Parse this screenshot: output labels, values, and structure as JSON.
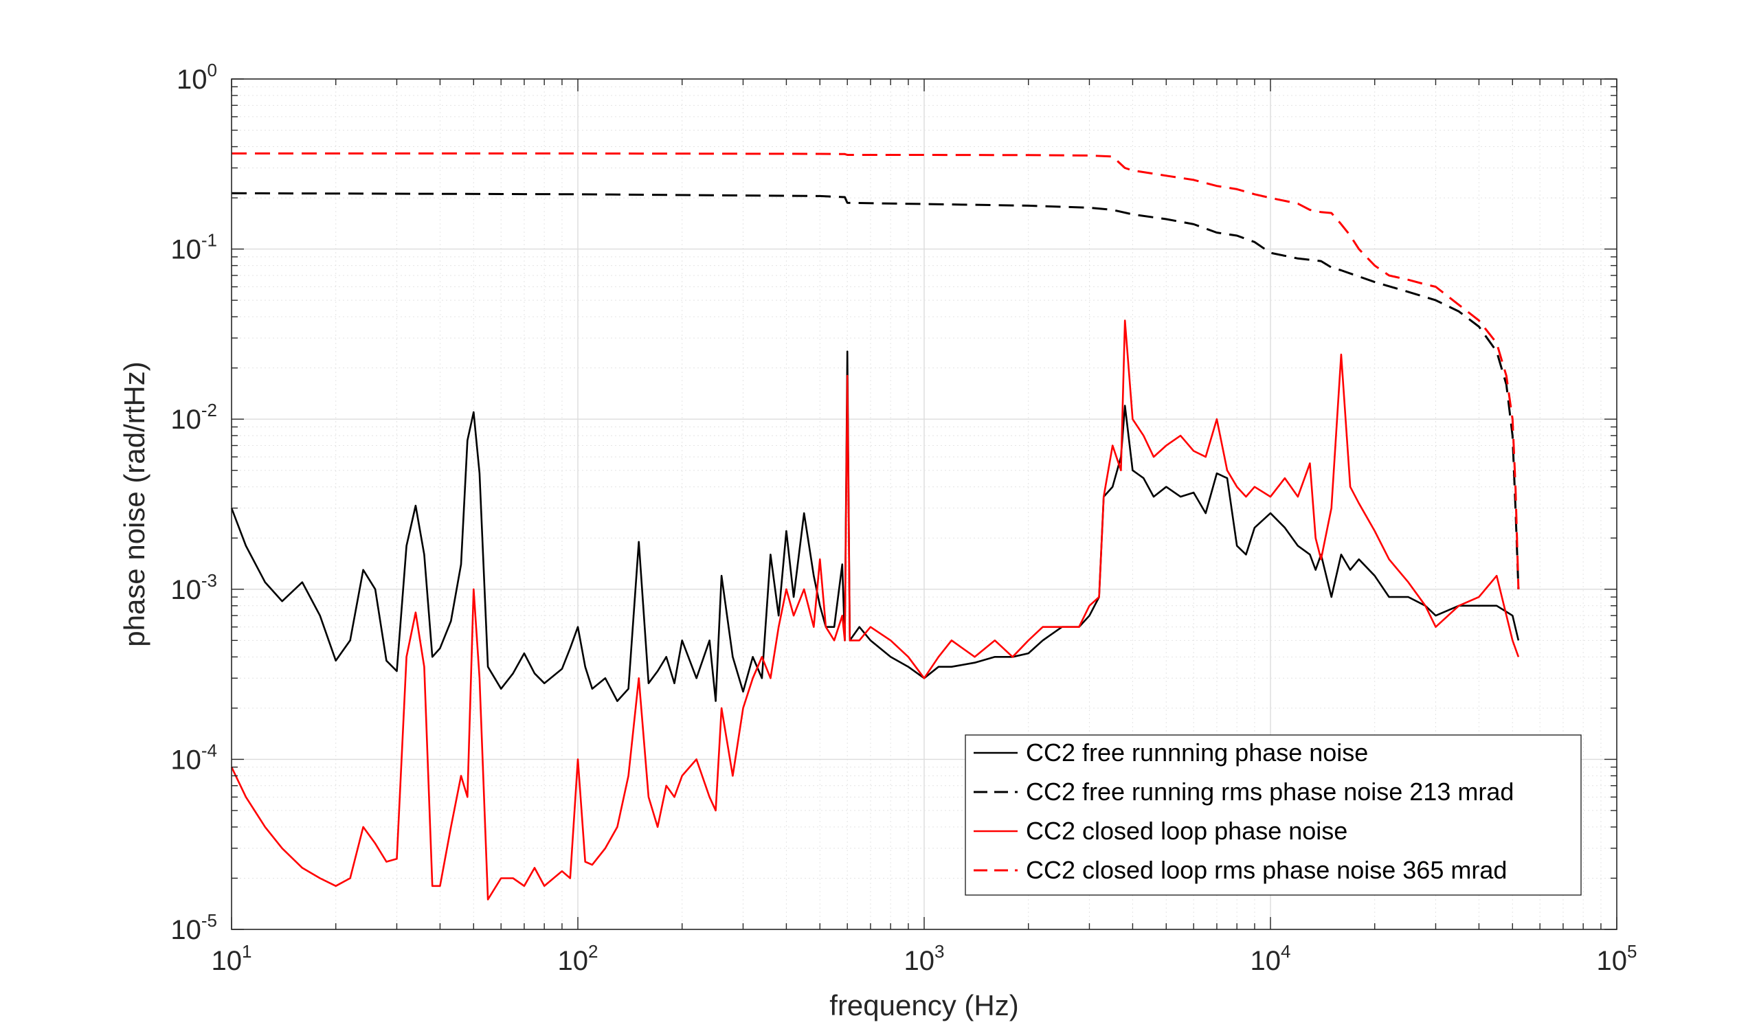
{
  "chart_data": {
    "type": "line",
    "title": "",
    "xlabel": "frequency (Hz)",
    "ylabel": "phase noise (rad/rtHz)",
    "xscale": "log",
    "yscale": "log",
    "xlim": [
      10,
      100000
    ],
    "ylim": [
      1e-05,
      1
    ],
    "grid": true,
    "legend_position": "bottom-right",
    "x_ticks": [
      {
        "base": "10",
        "exp": "1",
        "value": 10
      },
      {
        "base": "10",
        "exp": "2",
        "value": 100
      },
      {
        "base": "10",
        "exp": "3",
        "value": 1000
      },
      {
        "base": "10",
        "exp": "4",
        "value": 10000
      },
      {
        "base": "10",
        "exp": "5",
        "value": 100000
      }
    ],
    "y_ticks": [
      {
        "base": "10",
        "exp": "0",
        "value": 1
      },
      {
        "base": "10",
        "exp": "-1",
        "value": 0.1
      },
      {
        "base": "10",
        "exp": "-2",
        "value": 0.01
      },
      {
        "base": "10",
        "exp": "-3",
        "value": 0.001
      },
      {
        "base": "10",
        "exp": "-4",
        "value": 0.0001
      },
      {
        "base": "10",
        "exp": "-5",
        "value": 1e-05
      }
    ],
    "series": [
      {
        "name": "CC2 free runnning phase noise",
        "color": "#000000",
        "style": "solid",
        "x": [
          10,
          11,
          12.5,
          14,
          16,
          18,
          20,
          22,
          24,
          26,
          28,
          30,
          32,
          34,
          36,
          38,
          40,
          43,
          46,
          48,
          50,
          52,
          55,
          60,
          65,
          70,
          75,
          80,
          90,
          95,
          100,
          105,
          110,
          120,
          130,
          140,
          150,
          160,
          170,
          180,
          190,
          200,
          220,
          240,
          250,
          260,
          280,
          300,
          320,
          340,
          360,
          380,
          400,
          420,
          450,
          480,
          500,
          520,
          550,
          580,
          590,
          600,
          610,
          650,
          700,
          800,
          900,
          1000,
          1100,
          1200,
          1400,
          1600,
          1800,
          2000,
          2200,
          2500,
          2800,
          3000,
          3200,
          3300,
          3500,
          3700,
          3800,
          4000,
          4300,
          4600,
          5000,
          5500,
          6000,
          6500,
          7000,
          7500,
          8000,
          8500,
          9000,
          10000,
          11000,
          12000,
          13000,
          13500,
          14000,
          15000,
          16000,
          17000,
          18000,
          20000,
          22000,
          25000,
          28000,
          30000,
          35000,
          40000,
          45000,
          50000,
          52000
        ],
        "y": [
          0.003,
          0.0018,
          0.0011,
          0.00085,
          0.0011,
          0.0007,
          0.00038,
          0.0005,
          0.0013,
          0.001,
          0.00038,
          0.00033,
          0.0018,
          0.0031,
          0.0016,
          0.0004,
          0.00045,
          0.00065,
          0.0014,
          0.0075,
          0.011,
          0.0048,
          0.00035,
          0.00026,
          0.00032,
          0.00042,
          0.00032,
          0.00028,
          0.00034,
          0.00045,
          0.0006,
          0.00035,
          0.00026,
          0.0003,
          0.00022,
          0.00026,
          0.0019,
          0.00028,
          0.00033,
          0.0004,
          0.00028,
          0.0005,
          0.0003,
          0.0005,
          0.00022,
          0.0012,
          0.0004,
          0.00025,
          0.0004,
          0.0003,
          0.0016,
          0.0007,
          0.0022,
          0.0009,
          0.0028,
          0.0012,
          0.0008,
          0.0006,
          0.0006,
          0.0014,
          0.0005,
          0.025,
          0.0005,
          0.0006,
          0.0005,
          0.0004,
          0.00035,
          0.0003,
          0.00035,
          0.00035,
          0.00037,
          0.0004,
          0.0004,
          0.00042,
          0.0005,
          0.0006,
          0.0006,
          0.0007,
          0.0009,
          0.0035,
          0.004,
          0.006,
          0.012,
          0.005,
          0.0045,
          0.0035,
          0.004,
          0.0035,
          0.0037,
          0.0028,
          0.0048,
          0.0045,
          0.0018,
          0.0016,
          0.0023,
          0.0028,
          0.0023,
          0.0018,
          0.0016,
          0.0013,
          0.0016,
          0.0009,
          0.0016,
          0.0013,
          0.0015,
          0.0012,
          0.0009,
          0.0009,
          0.0008,
          0.0007,
          0.0008,
          0.0008,
          0.0008,
          0.0007,
          0.0005
        ]
      },
      {
        "name": "CC2 free running rms phase noise 213 mrad",
        "color": "#000000",
        "style": "dashed",
        "x": [
          10,
          100,
          500,
          590,
          600,
          1000,
          2000,
          3000,
          3500,
          4000,
          5000,
          6000,
          7000,
          8000,
          9000,
          10000,
          12000,
          14000,
          15000,
          16000,
          18000,
          20000,
          25000,
          30000,
          35000,
          40000,
          45000,
          48000,
          50000,
          51000,
          52000
        ],
        "y": [
          0.213,
          0.21,
          0.205,
          0.202,
          0.187,
          0.184,
          0.18,
          0.175,
          0.17,
          0.16,
          0.15,
          0.14,
          0.125,
          0.12,
          0.11,
          0.095,
          0.088,
          0.085,
          0.078,
          0.075,
          0.069,
          0.064,
          0.056,
          0.05,
          0.043,
          0.035,
          0.025,
          0.016,
          0.008,
          0.003,
          0.001
        ]
      },
      {
        "name": "CC2 closed loop phase noise",
        "color": "#ff0000",
        "style": "solid",
        "x": [
          10,
          11,
          12.5,
          14,
          16,
          18,
          20,
          22,
          24,
          26,
          28,
          30,
          32,
          34,
          36,
          38,
          40,
          43,
          46,
          48,
          50,
          52,
          55,
          60,
          65,
          70,
          75,
          80,
          90,
          95,
          100,
          105,
          110,
          120,
          130,
          140,
          150,
          160,
          170,
          180,
          190,
          200,
          220,
          240,
          250,
          260,
          280,
          300,
          320,
          340,
          360,
          380,
          400,
          420,
          450,
          480,
          500,
          520,
          550,
          580,
          590,
          600,
          610,
          650,
          700,
          800,
          900,
          1000,
          1100,
          1200,
          1400,
          1600,
          1800,
          2000,
          2200,
          2500,
          2800,
          3000,
          3200,
          3300,
          3500,
          3700,
          3800,
          4000,
          4300,
          4600,
          5000,
          5500,
          6000,
          6500,
          7000,
          7500,
          8000,
          8500,
          9000,
          10000,
          11000,
          12000,
          13000,
          13500,
          14000,
          15000,
          16000,
          17000,
          18000,
          20000,
          22000,
          25000,
          28000,
          30000,
          35000,
          40000,
          45000,
          50000,
          52000
        ],
        "y": [
          9e-05,
          6e-05,
          4e-05,
          3e-05,
          2.3e-05,
          2e-05,
          1.8e-05,
          2e-05,
          4e-05,
          3.2e-05,
          2.5e-05,
          2.6e-05,
          0.0004,
          0.00073,
          0.00035,
          1.8e-05,
          1.8e-05,
          4e-05,
          8e-05,
          6e-05,
          0.001,
          0.0003,
          1.5e-05,
          2e-05,
          2e-05,
          1.8e-05,
          2.3e-05,
          1.8e-05,
          2.2e-05,
          2e-05,
          0.0001,
          2.5e-05,
          2.4e-05,
          3e-05,
          4e-05,
          8e-05,
          0.0003,
          6e-05,
          4e-05,
          7e-05,
          6e-05,
          8e-05,
          0.0001,
          6e-05,
          5e-05,
          0.0002,
          8e-05,
          0.0002,
          0.0003,
          0.0004,
          0.0003,
          0.0006,
          0.001,
          0.0007,
          0.001,
          0.0006,
          0.0015,
          0.0006,
          0.0005,
          0.0007,
          0.0005,
          0.018,
          0.0005,
          0.0005,
          0.0006,
          0.0005,
          0.0004,
          0.0003,
          0.0004,
          0.0005,
          0.0004,
          0.0005,
          0.0004,
          0.0005,
          0.0006,
          0.0006,
          0.0006,
          0.0008,
          0.0009,
          0.0035,
          0.007,
          0.005,
          0.038,
          0.01,
          0.008,
          0.006,
          0.007,
          0.008,
          0.0065,
          0.006,
          0.01,
          0.005,
          0.004,
          0.0035,
          0.004,
          0.0035,
          0.0045,
          0.0035,
          0.0055,
          0.002,
          0.0015,
          0.003,
          0.024,
          0.004,
          0.0032,
          0.0022,
          0.0015,
          0.0011,
          0.0008,
          0.0006,
          0.0008,
          0.0009,
          0.0012,
          0.0005,
          0.0004
        ]
      },
      {
        "name": "CC2 closed loop rms phase noise 365 mrad",
        "color": "#ff0000",
        "style": "dashed",
        "x": [
          10,
          100,
          500,
          590,
          600,
          1000,
          2000,
          3000,
          3500,
          3800,
          4000,
          5000,
          6000,
          7000,
          8000,
          9000,
          10000,
          12000,
          13000,
          14000,
          15000,
          16000,
          17000,
          18000,
          20000,
          22000,
          25000,
          28000,
          30000,
          35000,
          40000,
          45000,
          48000,
          50000,
          51000,
          52000
        ],
        "y": [
          0.365,
          0.365,
          0.363,
          0.362,
          0.358,
          0.358,
          0.357,
          0.355,
          0.35,
          0.3,
          0.29,
          0.27,
          0.255,
          0.235,
          0.225,
          0.21,
          0.2,
          0.185,
          0.17,
          0.165,
          0.163,
          0.14,
          0.12,
          0.1,
          0.08,
          0.07,
          0.066,
          0.062,
          0.06,
          0.047,
          0.038,
          0.028,
          0.018,
          0.01,
          0.004,
          0.001
        ]
      }
    ]
  }
}
